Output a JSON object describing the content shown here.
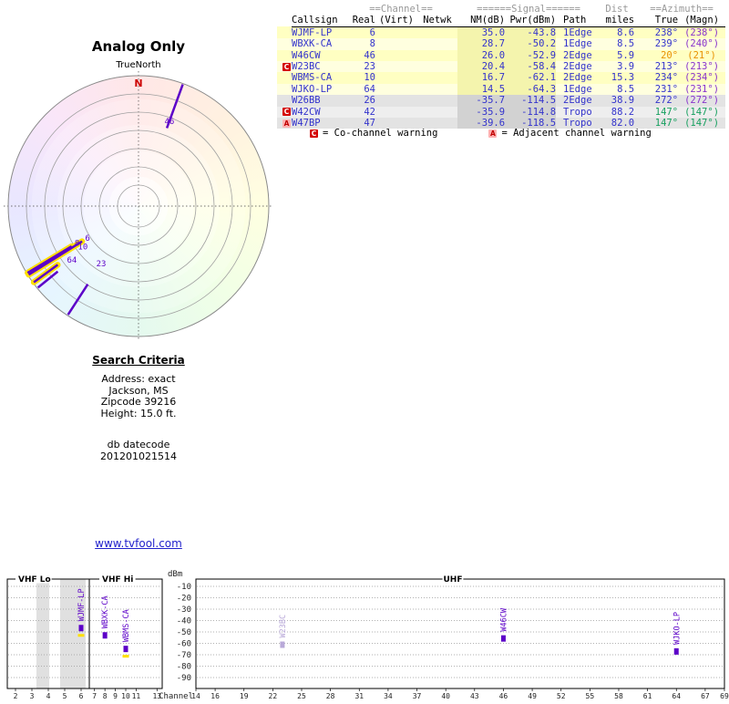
{
  "radar": {
    "title": "Analog Only",
    "north_label": "TrueNorth",
    "n_marker": "N"
  },
  "table": {
    "group_headers": {
      "channel": "==Channel==",
      "signal": "======Signal======",
      "dist": "Dist",
      "azimuth": "==Azimuth=="
    },
    "columns": {
      "callsign": "Callsign",
      "real": "Real",
      "virt": "(Virt)",
      "netwk": "Netwk",
      "nm": "NM(dB)",
      "pwr": "Pwr(dBm)",
      "path": "Path",
      "miles": "miles",
      "true": "True",
      "magn": "(Magn)"
    },
    "rows": [
      {
        "callsign": "WJMF-LP",
        "real": "6",
        "virt": "",
        "netwk": "",
        "nm": "35.0",
        "pwr": "-43.8",
        "path": "1Edge",
        "miles": "8.6",
        "az_true": "238°",
        "az_magn": "(238°)",
        "az_class": "blue",
        "band": "yellow",
        "warnings": []
      },
      {
        "callsign": "WBXK-CA",
        "real": "8",
        "virt": "",
        "netwk": "",
        "nm": "28.7",
        "pwr": "-50.2",
        "path": "1Edge",
        "miles": "8.5",
        "az_true": "239°",
        "az_magn": "(240°)",
        "az_class": "blue",
        "band": "yellow",
        "warnings": []
      },
      {
        "callsign": "W46CW",
        "real": "46",
        "virt": "",
        "netwk": "",
        "nm": "26.0",
        "pwr": "-52.9",
        "path": "2Edge",
        "miles": "5.9",
        "az_true": "20°",
        "az_magn": "(21°)",
        "az_class": "orange",
        "band": "yellow",
        "warnings": []
      },
      {
        "callsign": "W23BC",
        "real": "23",
        "virt": "",
        "netwk": "",
        "nm": "20.4",
        "pwr": "-58.4",
        "path": "2Edge",
        "miles": "3.9",
        "az_true": "213°",
        "az_magn": "(213°)",
        "az_class": "blue",
        "band": "yellow",
        "warnings": [
          "C"
        ]
      },
      {
        "callsign": "WBMS-CA",
        "real": "10",
        "virt": "",
        "netwk": "",
        "nm": "16.7",
        "pwr": "-62.1",
        "path": "2Edge",
        "miles": "15.3",
        "az_true": "234°",
        "az_magn": "(234°)",
        "az_class": "blue",
        "band": "yellow",
        "warnings": []
      },
      {
        "callsign": "WJKO-LP",
        "real": "64",
        "virt": "",
        "netwk": "",
        "nm": "14.5",
        "pwr": "-64.3",
        "path": "1Edge",
        "miles": "8.5",
        "az_true": "231°",
        "az_magn": "(231°)",
        "az_class": "blue",
        "band": "yellow",
        "warnings": []
      },
      {
        "callsign": "W26BB",
        "real": "26",
        "virt": "",
        "netwk": "",
        "nm": "-35.7",
        "pwr": "-114.5",
        "path": "2Edge",
        "miles": "38.9",
        "az_true": "272°",
        "az_magn": "(272°)",
        "az_class": "blue",
        "band": "gray",
        "warnings": []
      },
      {
        "callsign": "W42CW",
        "real": "42",
        "virt": "",
        "netwk": "",
        "nm": "-35.9",
        "pwr": "-114.8",
        "path": "Tropo",
        "miles": "88.2",
        "az_true": "147°",
        "az_magn": "(147°)",
        "az_class": "green",
        "band": "gray",
        "warnings": [
          "C"
        ]
      },
      {
        "callsign": "W47BP",
        "real": "47",
        "virt": "",
        "netwk": "",
        "nm": "-39.6",
        "pwr": "-118.5",
        "path": "Tropo",
        "miles": "82.0",
        "az_true": "147°",
        "az_magn": "(147°)",
        "az_class": "green",
        "band": "gray",
        "warnings": [
          "A"
        ]
      }
    ]
  },
  "legend": {
    "co": {
      "icon": "C",
      "text": "= Co-channel warning"
    },
    "adj": {
      "icon": "A",
      "text": "= Adjacent channel warning"
    }
  },
  "search": {
    "title": "Search Criteria",
    "lines": [
      "Address: exact",
      "Jackson, MS",
      "Zipcode 39216",
      "Height: 15.0 ft."
    ],
    "db_label": "db datecode",
    "db_value": "201201021514"
  },
  "footer_link": "www.tvfool.com",
  "colors": {
    "data_blue": "#3333cc",
    "magnetic_purple": "#8833cc",
    "azimuth_orange": "#e89000",
    "azimuth_green": "#18a060",
    "spoke_purple": "#5c00c8",
    "highlight_yellow": "#ffdf00",
    "warning_red": "#d40000",
    "warning_pink": "#ffb2b2",
    "north_red": "#cc0000"
  },
  "chart_data": [
    {
      "type": "polar",
      "title": "Analog Only",
      "orientation": "TrueNorth",
      "north_marker": "N",
      "spokes": [
        {
          "channel": "46",
          "azimuth_deg": 20,
          "nm_db": 26.0,
          "highlighted": false,
          "label_dr": 8
        },
        {
          "channel": "6",
          "azimuth_deg": 238,
          "nm_db": 35.0,
          "highlighted": true,
          "label_dr": -7
        },
        {
          "channel": "8",
          "azimuth_deg": 239,
          "nm_db": 28.7,
          "highlighted": true,
          "label_dr": -7
        },
        {
          "channel": "10",
          "azimuth_deg": 234,
          "nm_db": 16.7,
          "highlighted": true,
          "label_dr": -34
        },
        {
          "channel": "64",
          "azimuth_deg": 231,
          "nm_db": 14.5,
          "highlighted": false,
          "label_dr": -20
        },
        {
          "channel": "23",
          "azimuth_deg": 213,
          "nm_db": 20.4,
          "highlighted": false,
          "label_dr": -27
        }
      ]
    },
    {
      "type": "bar",
      "xlabel": "Channel",
      "ylabel": "dBm",
      "ylim": [
        -95,
        -5
      ],
      "grid": true,
      "y_ticks": [
        -10,
        -20,
        -30,
        -40,
        -50,
        -60,
        -70,
        -80,
        -90
      ],
      "panels": [
        {
          "label": "VHF Lo",
          "channels": [
            2,
            3,
            4,
            5,
            6
          ]
        },
        {
          "label": "VHF Hi",
          "channels": [
            7,
            8,
            9,
            10,
            11,
            13
          ]
        },
        {
          "label": "UHF",
          "channels": [
            14,
            16,
            19,
            22,
            25,
            28,
            31,
            34,
            37,
            40,
            43,
            46,
            49,
            52,
            55,
            58,
            61,
            64,
            67,
            69
          ]
        }
      ],
      "bars": [
        {
          "callsign": "WJMF-LP",
          "channel": 6,
          "dbm": -43.8,
          "faded": false,
          "yellow_mark": true
        },
        {
          "callsign": "WBXK-CA",
          "channel": 8,
          "dbm": -50.2,
          "faded": false,
          "yellow_mark": false
        },
        {
          "callsign": "WBMS-CA",
          "channel": 10,
          "dbm": -62.1,
          "faded": false,
          "yellow_mark": true
        },
        {
          "callsign": "W23BC",
          "channel": 23,
          "dbm": -58.4,
          "faded": true,
          "yellow_mark": false
        },
        {
          "callsign": "W46CW",
          "channel": 46,
          "dbm": -52.9,
          "faded": false,
          "yellow_mark": false
        },
        {
          "callsign": "WJKO-LP",
          "channel": 64,
          "dbm": -64.3,
          "faded": false,
          "yellow_mark": false
        }
      ]
    }
  ]
}
